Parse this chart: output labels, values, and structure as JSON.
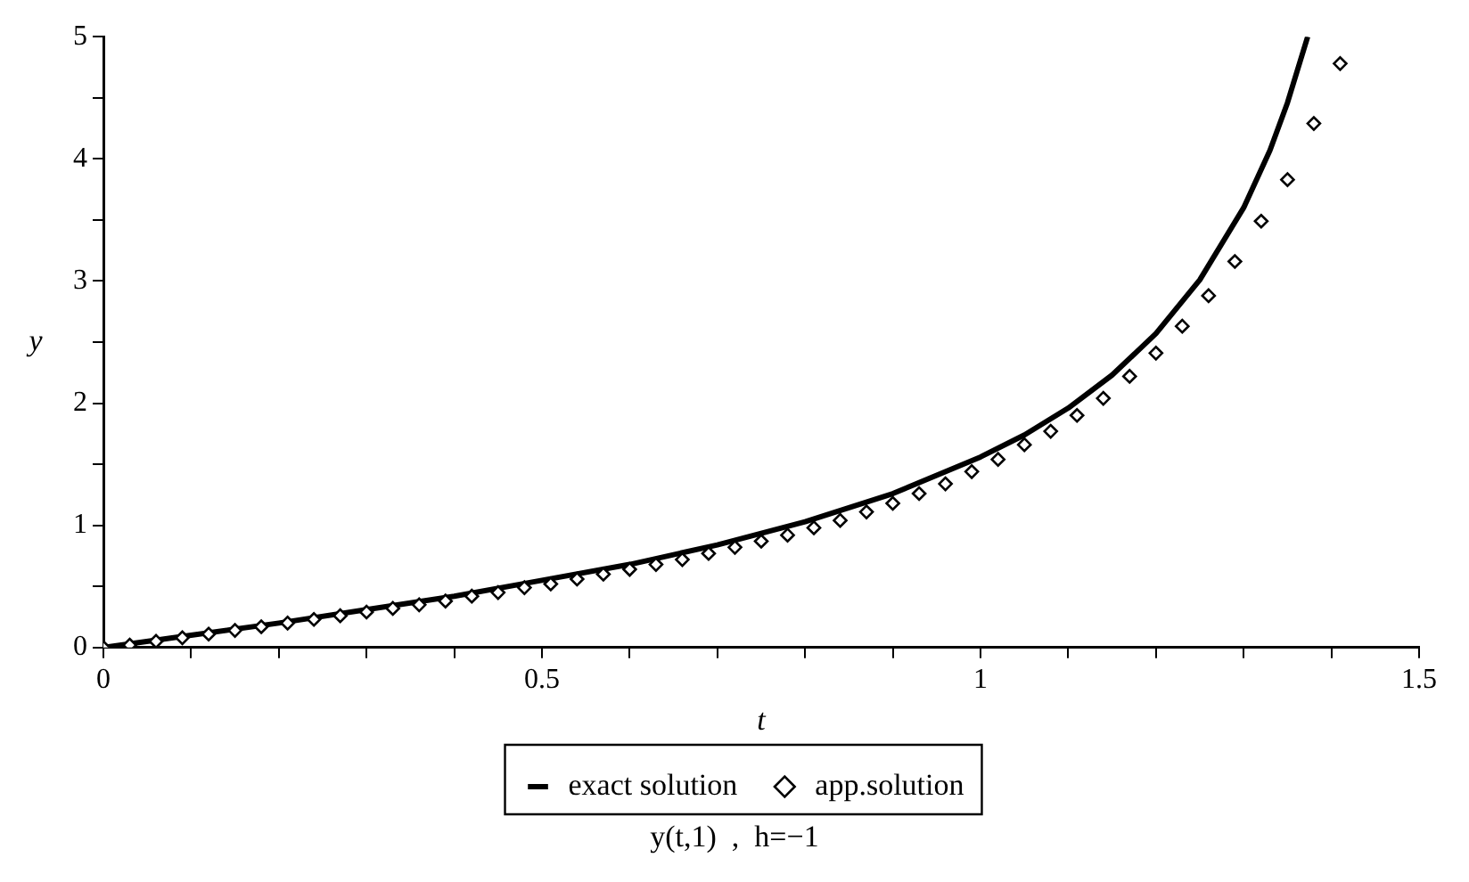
{
  "chart_data": {
    "type": "line",
    "xlabel": "t",
    "ylabel": "y",
    "annotations": [
      "y(t,1)  ,  h=−1"
    ],
    "xlim": [
      0,
      1.5
    ],
    "ylim": [
      0,
      5
    ],
    "xticks": [
      0,
      {
        "value": 0.1,
        "label": null
      },
      {
        "value": 0.2,
        "label": null
      },
      {
        "value": 0.3,
        "label": null
      },
      {
        "value": 0.4,
        "label": null
      },
      0.5,
      {
        "value": 0.6,
        "label": null
      },
      {
        "value": 0.7,
        "label": null
      },
      {
        "value": 0.8,
        "label": null
      },
      {
        "value": 0.9,
        "label": null
      },
      1,
      {
        "value": 1.1,
        "label": null
      },
      {
        "value": 1.2,
        "label": null
      },
      {
        "value": 1.3,
        "label": null
      },
      {
        "value": 1.4,
        "label": null
      },
      1.5
    ],
    "yticks": [
      0,
      {
        "value": 0.5,
        "label": null
      },
      1,
      {
        "value": 1.5,
        "label": null
      },
      2,
      {
        "value": 2.5,
        "label": null
      },
      3,
      {
        "value": 3.5,
        "label": null
      },
      4,
      {
        "value": 4.5,
        "label": null
      },
      5
    ],
    "grid": false,
    "legend": "bottom",
    "series": [
      {
        "name": "exact solution",
        "type": "line",
        "color": "#000000",
        "marker": "none",
        "line_style": "solid",
        "x": [
          0,
          0.1,
          0.2,
          0.3,
          0.4,
          0.5,
          0.6,
          0.7,
          0.8,
          0.9,
          1.0,
          1.05,
          1.1,
          1.15,
          1.2,
          1.25,
          1.3,
          1.33,
          1.35,
          1.373
        ],
        "values": [
          0,
          0.1,
          0.2,
          0.31,
          0.42,
          0.55,
          0.68,
          0.84,
          1.03,
          1.26,
          1.56,
          1.74,
          1.96,
          2.23,
          2.57,
          3.01,
          3.6,
          4.07,
          4.46,
          5.0
        ]
      },
      {
        "name": "app.solution",
        "type": "scatter",
        "color": "#000000",
        "marker": "diamond",
        "x": [
          0,
          0.03,
          0.06,
          0.09,
          0.12,
          0.15,
          0.18,
          0.21,
          0.24,
          0.27,
          0.3,
          0.33,
          0.36,
          0.39,
          0.42,
          0.45,
          0.48,
          0.51,
          0.54,
          0.57,
          0.6,
          0.63,
          0.66,
          0.69,
          0.72,
          0.75,
          0.78,
          0.81,
          0.84,
          0.87,
          0.9,
          0.93,
          0.96,
          0.99,
          1.02,
          1.05,
          1.08,
          1.11,
          1.14,
          1.17,
          1.2,
          1.23,
          1.26,
          1.29,
          1.32,
          1.35,
          1.38,
          1.41
        ],
        "values": [
          0,
          0.02,
          0.05,
          0.08,
          0.11,
          0.14,
          0.17,
          0.2,
          0.23,
          0.26,
          0.29,
          0.32,
          0.35,
          0.38,
          0.42,
          0.45,
          0.49,
          0.52,
          0.56,
          0.6,
          0.64,
          0.68,
          0.72,
          0.77,
          0.82,
          0.87,
          0.92,
          0.98,
          1.04,
          1.11,
          1.18,
          1.26,
          1.34,
          1.44,
          1.54,
          1.66,
          1.77,
          1.9,
          2.04,
          2.22,
          2.41,
          2.63,
          2.88,
          3.16,
          3.49,
          3.83,
          4.29,
          4.78
        ]
      }
    ]
  }
}
